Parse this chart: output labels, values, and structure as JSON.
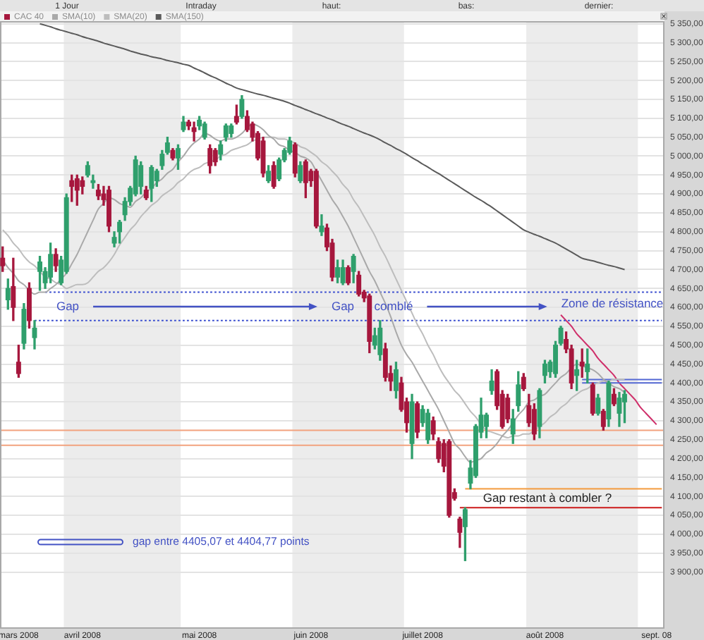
{
  "chart_data": {
    "type": "candlestick",
    "categories": [
      null,
      null,
      null,
      "mars 2008",
      null,
      null,
      null,
      null,
      null,
      null,
      null,
      null,
      null,
      null,
      null,
      "avril 2008",
      null,
      null,
      null,
      null,
      null,
      null,
      null,
      null,
      null,
      null,
      null,
      null,
      null,
      null,
      null,
      null,
      null,
      null,
      null,
      null,
      null,
      "mai 2008",
      null,
      null,
      null,
      null,
      null,
      null,
      null,
      null,
      null,
      null,
      null,
      null,
      null,
      null,
      null,
      null,
      null,
      null,
      null,
      null,
      "juin 2008",
      null,
      null,
      null,
      null,
      null,
      null,
      null,
      null,
      null,
      null,
      null,
      null,
      null,
      null,
      null,
      null,
      null,
      null,
      null,
      null,
      "juillet 2008",
      null,
      null,
      null,
      null,
      null,
      null,
      null,
      null,
      null,
      null,
      null,
      null,
      null,
      null,
      null,
      null,
      null,
      null,
      null,
      null,
      null,
      null,
      "août 2008",
      null,
      null,
      null,
      null,
      null,
      null,
      null,
      null,
      null,
      null,
      null,
      null,
      null,
      null,
      null,
      null,
      null,
      null,
      null,
      null,
      "sept. 08",
      null
    ],
    "ylim": [
      3750,
      5357
    ],
    "yticks": [
      {
        "value": 3900,
        "label": "3 900,00"
      },
      {
        "value": 3950,
        "label": "3 950,00"
      },
      {
        "value": 4000,
        "label": "4 000,00"
      },
      {
        "value": 4050,
        "label": "4 050,00"
      },
      {
        "value": 4100,
        "label": "4 100,00"
      },
      {
        "value": 4150,
        "label": "4 150,00"
      },
      {
        "value": 4200,
        "label": "4 200,00"
      },
      {
        "value": 4250,
        "label": "4 250,00"
      },
      {
        "value": 4300,
        "label": "4 300,00"
      },
      {
        "value": 4350,
        "label": "4 350,00"
      },
      {
        "value": 4400,
        "label": "4 400,00"
      },
      {
        "value": 4450,
        "label": "4 450,00"
      },
      {
        "value": 4500,
        "label": "4 500,00"
      },
      {
        "value": 4550,
        "label": "4 550,00"
      },
      {
        "value": 4600,
        "label": "4 600,00"
      },
      {
        "value": 4650,
        "label": "4 650,00"
      },
      {
        "value": 4700,
        "label": "4 700,00"
      },
      {
        "value": 4750,
        "label": "4 750,00"
      },
      {
        "value": 4800,
        "label": "4 800,00"
      },
      {
        "value": 4850,
        "label": "4 850,00"
      },
      {
        "value": 4900,
        "label": "4 900,00"
      },
      {
        "value": 4950,
        "label": "4 950,00"
      },
      {
        "value": 5000,
        "label": "5 000,00"
      },
      {
        "value": 5050,
        "label": "5 050,00"
      },
      {
        "value": 5100,
        "label": "5 100,00"
      },
      {
        "value": 5150,
        "label": "5 150,00"
      },
      {
        "value": 5200,
        "label": "5 200,00"
      },
      {
        "value": 5250,
        "label": "5 250,00"
      },
      {
        "value": 5300,
        "label": "5 300,00"
      },
      {
        "value": 5350,
        "label": "5 350,00"
      }
    ],
    "grid": "y",
    "legend": "top left",
    "marker": "none",
    "series": [
      {
        "name": "CAC 40",
        "color": "#a6173d",
        "ohlc": [
          [
            4730,
            4760,
            4695,
            4710
          ],
          [
            4620,
            4675,
            4595,
            4650
          ],
          [
            4655,
            4730,
            4565,
            4600
          ],
          [
            4455,
            4500,
            4415,
            4425
          ],
          [
            4505,
            4610,
            4490,
            4595
          ],
          [
            4650,
            4665,
            4545,
            4565
          ],
          [
            4520,
            4565,
            4490,
            4545
          ],
          [
            4695,
            4735,
            4645,
            4720
          ],
          [
            4665,
            4705,
            4650,
            4695
          ],
          [
            4680,
            4770,
            4665,
            4740
          ],
          [
            4740,
            4755,
            4695,
            4710
          ],
          [
            4665,
            4735,
            4660,
            4725
          ],
          [
            4695,
            4900,
            4690,
            4890
          ],
          [
            4935,
            4950,
            4880,
            4920
          ],
          [
            4940,
            4950,
            4870,
            4910
          ],
          [
            4935,
            4945,
            4900,
            4920
          ],
          [
            4950,
            4985,
            4945,
            4975
          ],
          [
            4930,
            4950,
            4915,
            4935
          ],
          [
            4910,
            4925,
            4885,
            4895
          ],
          [
            4900,
            4920,
            4870,
            4885
          ],
          [
            4910,
            4920,
            4800,
            4815
          ],
          [
            4770,
            4800,
            4760,
            4785
          ],
          [
            4800,
            4830,
            4770,
            4825
          ],
          [
            4845,
            4890,
            4830,
            4880
          ],
          [
            4880,
            4920,
            4870,
            4915
          ],
          [
            4900,
            5000,
            4895,
            4990
          ],
          [
            4920,
            4985,
            4900,
            4975
          ],
          [
            4910,
            4920,
            4885,
            4890
          ],
          [
            4915,
            4975,
            4880,
            4970
          ],
          [
            4935,
            4965,
            4920,
            4960
          ],
          [
            4975,
            5015,
            4965,
            5005
          ],
          [
            5010,
            5050,
            5005,
            5035
          ],
          [
            5015,
            5020,
            4990,
            4995
          ],
          [
            4995,
            5030,
            4965,
            5020
          ],
          [
            5070,
            5105,
            5065,
            5090
          ],
          [
            5090,
            5095,
            5070,
            5080
          ],
          [
            5075,
            5090,
            5040,
            5065
          ],
          [
            5080,
            5105,
            5070,
            5095
          ],
          [
            5050,
            5090,
            5045,
            5085
          ],
          [
            5020,
            5030,
            4955,
            4975
          ],
          [
            5015,
            5020,
            4975,
            4985
          ],
          [
            5005,
            5040,
            4990,
            5030
          ],
          [
            5050,
            5085,
            5040,
            5080
          ],
          [
            5060,
            5085,
            5050,
            5080
          ],
          [
            5105,
            5135,
            5085,
            5090
          ],
          [
            5105,
            5160,
            5100,
            5150
          ],
          [
            5105,
            5120,
            5065,
            5070
          ],
          [
            5085,
            5090,
            5040,
            5050
          ],
          [
            5060,
            5065,
            4990,
            4995
          ],
          [
            5040,
            5050,
            4945,
            4955
          ],
          [
            4935,
            4975,
            4930,
            4960
          ],
          [
            4975,
            4985,
            4915,
            4920
          ],
          [
            4940,
            4995,
            4935,
            4990
          ],
          [
            4990,
            5020,
            4985,
            5015
          ],
          [
            5010,
            5050,
            5005,
            5040
          ],
          [
            5030,
            5035,
            4945,
            4955
          ],
          [
            4935,
            4985,
            4930,
            4975
          ],
          [
            4985,
            4990,
            4890,
            4930
          ],
          [
            4960,
            4965,
            4920,
            4935
          ],
          [
            4960,
            4965,
            4810,
            4815
          ],
          [
            4800,
            4845,
            4790,
            4815
          ],
          [
            4810,
            4820,
            4750,
            4760
          ],
          [
            4770,
            4780,
            4670,
            4680
          ],
          [
            4680,
            4725,
            4665,
            4705
          ],
          [
            4665,
            4725,
            4660,
            4705
          ],
          [
            4705,
            4710,
            4660,
            4665
          ],
          [
            4695,
            4740,
            4665,
            4735
          ],
          [
            4685,
            4695,
            4630,
            4635
          ],
          [
            4640,
            4645,
            4615,
            4625
          ],
          [
            4630,
            4635,
            4480,
            4510
          ],
          [
            4500,
            4545,
            4490,
            4525
          ],
          [
            4475,
            4565,
            4460,
            4545
          ],
          [
            4490,
            4505,
            4405,
            4415
          ],
          [
            4425,
            4445,
            4380,
            4405
          ],
          [
            4380,
            4455,
            4360,
            4435
          ],
          [
            4400,
            4415,
            4325,
            4330
          ],
          [
            4350,
            4360,
            4270,
            4295
          ],
          [
            4240,
            4370,
            4200,
            4350
          ],
          [
            4345,
            4350,
            4255,
            4270
          ],
          [
            4295,
            4340,
            4285,
            4330
          ],
          [
            4250,
            4330,
            4240,
            4320
          ],
          [
            4300,
            4310,
            4250,
            4265
          ],
          [
            4245,
            4255,
            4190,
            4200
          ],
          [
            4240,
            4250,
            4165,
            4180
          ],
          [
            4245,
            4250,
            4045,
            4050
          ],
          [
            4110,
            4120,
            4090,
            4095
          ],
          [
            4040,
            4045,
            3965,
            4005
          ],
          [
            4020,
            4070,
            3930,
            4065
          ],
          [
            4135,
            4195,
            4120,
            4175
          ],
          [
            4155,
            4290,
            4150,
            4285
          ],
          [
            4270,
            4360,
            4255,
            4315
          ],
          [
            4285,
            4320,
            4255,
            4315
          ],
          [
            4380,
            4435,
            4370,
            4405
          ],
          [
            4430,
            4435,
            4330,
            4340
          ],
          [
            4370,
            4380,
            4280,
            4285
          ],
          [
            4360,
            4370,
            4295,
            4305
          ],
          [
            4265,
            4330,
            4240,
            4305
          ],
          [
            4340,
            4430,
            4325,
            4395
          ],
          [
            4415,
            4425,
            4380,
            4385
          ],
          [
            4340,
            4370,
            4285,
            4295
          ],
          [
            4330,
            4345,
            4250,
            4265
          ],
          [
            4285,
            4385,
            4255,
            4380
          ],
          [
            4420,
            4460,
            4400,
            4450
          ],
          [
            4430,
            4460,
            4415,
            4455
          ],
          [
            4425,
            4510,
            4415,
            4500
          ],
          [
            4505,
            4550,
            4500,
            4545
          ],
          [
            4515,
            4535,
            4480,
            4490
          ],
          [
            4490,
            4500,
            4385,
            4400
          ],
          [
            4420,
            4460,
            4380,
            4435
          ],
          [
            4455,
            4490,
            4415,
            4445
          ],
          [
            4430,
            4490,
            4400,
            4450
          ],
          [
            4395,
            4400,
            4315,
            4320
          ],
          [
            4320,
            4370,
            4315,
            4360
          ],
          [
            4325,
            4330,
            4275,
            4285
          ],
          [
            4305,
            4405,
            4285,
            4400
          ],
          [
            4370,
            4385,
            4340,
            4345
          ],
          [
            4320,
            4375,
            4285,
            4360
          ],
          [
            4350,
            4380,
            4295,
            4370
          ],
          null,
          null,
          null,
          null,
          null,
          null,
          null
        ],
        "colors": [
          "#a6173d",
          "#2f9f6c",
          "#a6173d",
          "#a6173d",
          "#2f9f6c",
          "#a6173d",
          "#2f9f6c",
          "#2f9f6c",
          "#2f9f6c",
          "#2f9f6c",
          "#a6173d",
          "#2f9f6c",
          "#2f9f6c",
          "#a6173d",
          "#a6173d",
          "#a6173d",
          "#2f9f6c",
          "#2f9f6c",
          "#a6173d",
          "#a6173d",
          "#a6173d",
          "#2f9f6c",
          "#2f9f6c",
          "#2f9f6c",
          "#2f9f6c",
          "#2f9f6c",
          "#2f9f6c",
          "#a6173d",
          "#2f9f6c",
          "#2f9f6c",
          "#2f9f6c",
          "#2f9f6c",
          "#a6173d",
          "#2f9f6c",
          "#2f9f6c",
          "#a6173d",
          "#a6173d",
          "#2f9f6c",
          "#2f9f6c",
          "#a6173d",
          "#a6173d",
          "#2f9f6c",
          "#2f9f6c",
          "#2f9f6c",
          "#a6173d",
          "#2f9f6c",
          "#a6173d",
          "#a6173d",
          "#a6173d",
          "#a6173d",
          "#2f9f6c",
          "#a6173d",
          "#2f9f6c",
          "#2f9f6c",
          "#2f9f6c",
          "#a6173d",
          "#2f9f6c",
          "#a6173d",
          "#a6173d",
          "#a6173d",
          "#2f9f6c",
          "#a6173d",
          "#a6173d",
          "#2f9f6c",
          "#2f9f6c",
          "#a6173d",
          "#2f9f6c",
          "#a6173d",
          "#a6173d",
          "#a6173d",
          "#2f9f6c",
          "#2f9f6c",
          "#a6173d",
          "#a6173d",
          "#2f9f6c",
          "#a6173d",
          "#a6173d",
          "#2f9f6c",
          "#a6173d",
          "#2f9f6c",
          "#2f9f6c",
          "#a6173d",
          "#a6173d",
          "#a6173d",
          "#a6173d",
          "#a6173d",
          "#a6173d",
          "#2f9f6c",
          "#2f9f6c",
          "#2f9f6c",
          "#2f9f6c",
          "#2f9f6c",
          "#2f9f6c",
          "#a6173d",
          "#a6173d",
          "#a6173d",
          "#2f9f6c",
          "#2f9f6c",
          "#a6173d",
          "#a6173d",
          "#a6173d",
          "#2f9f6c",
          "#2f9f6c",
          "#2f9f6c",
          "#2f9f6c",
          "#2f9f6c",
          "#a6173d",
          "#a6173d",
          "#2f9f6c",
          "#a6173d",
          "#2f9f6c",
          "#a6173d",
          "#2f9f6c",
          "#a6173d",
          "#2f9f6c",
          "#a6173d",
          "#2f9f6c",
          "#2f9f6c",
          null,
          null,
          null,
          null,
          null,
          null,
          null
        ]
      },
      {
        "name": "SMA(10)",
        "type": "line",
        "color": "#a9a9a9",
        "values": [
          4725,
          4705,
          4690,
          4670,
          4660,
          4645,
          4635,
          4640,
          4640,
          4650,
          4660,
          4675,
          4690,
          4715,
          4740,
          4770,
          4800,
          4830,
          4860,
          4875,
          4890,
          4885,
          4875,
          4870,
          4865,
          4880,
          4890,
          4905,
          4915,
          4930,
          4940,
          4955,
          4965,
          4985,
          5000,
          5020,
          5035,
          5045,
          5060,
          5055,
          5045,
          5040,
          5045,
          5045,
          5050,
          5060,
          5075,
          5085,
          5080,
          5070,
          5055,
          5045,
          5030,
          5025,
          5015,
          5010,
          5000,
          4995,
          4985,
          4960,
          4935,
          4910,
          4885,
          4865,
          4840,
          4815,
          4785,
          4755,
          4725,
          4695,
          4670,
          4640,
          4610,
          4575,
          4535,
          4500,
          4475,
          4455,
          4430,
          4405,
          4380,
          4355,
          4330,
          4300,
          4270,
          4240,
          4225,
          4205,
          4190,
          4195,
          4200,
          4215,
          4225,
          4240,
          4260,
          4275,
          4295,
          4315,
          4330,
          4350,
          4355,
          4365,
          4370,
          4385,
          4400,
          4415,
          4425,
          4440,
          4450,
          4445,
          4440,
          4435,
          4425,
          4410,
          4400,
          4390,
          4385,
          4375,
          null,
          null,
          null,
          null,
          null,
          null,
          null
        ]
      },
      {
        "name": "SMA(20)",
        "type": "line",
        "color": "#bdbdbd",
        "values": [
          4805,
          4790,
          4770,
          4755,
          4735,
          4720,
          4710,
          4695,
          4680,
          4675,
          4665,
          4660,
          4650,
          4655,
          4660,
          4660,
          4665,
          4680,
          4695,
          4705,
          4720,
          4740,
          4765,
          4785,
          4805,
          4820,
          4840,
          4855,
          4870,
          4880,
          4895,
          4905,
          4915,
          4930,
          4940,
          4955,
          4965,
          4970,
          4980,
          4985,
          4990,
          5000,
          5005,
          5015,
          5020,
          5025,
          5030,
          5040,
          5045,
          5050,
          5050,
          5050,
          5045,
          5045,
          5040,
          5035,
          5025,
          5020,
          5010,
          5000,
          4985,
          4975,
          4960,
          4945,
          4925,
          4910,
          4885,
          4865,
          4840,
          4815,
          4790,
          4760,
          4735,
          4705,
          4675,
          4645,
          4615,
          4585,
          4555,
          4530,
          4500,
          4475,
          4445,
          4420,
          4400,
          4380,
          4365,
          4345,
          4325,
          4310,
          4290,
          4275,
          4270,
          4265,
          4260,
          4255,
          4260,
          4260,
          4265,
          4265,
          4275,
          4285,
          4295,
          4310,
          4320,
          4335,
          4345,
          4360,
          4370,
          4380,
          4385,
          4395,
          4400,
          4405,
          4405,
          4410,
          4410,
          4410,
          null,
          null,
          null,
          null,
          null,
          null,
          null
        ]
      },
      {
        "name": "SMA(150)",
        "type": "line",
        "color": "#5a5a5a",
        "values": [
          null,
          null,
          null,
          null,
          null,
          null,
          null,
          5350,
          5346,
          5342,
          5337,
          5333,
          5329,
          5325,
          5321,
          5316,
          5312,
          5308,
          5304,
          5299,
          5295,
          5291,
          5287,
          5283,
          5278,
          5274,
          5270,
          5267,
          5263,
          5260,
          5257,
          5253,
          5250,
          5247,
          5243,
          5240,
          5233,
          5227,
          5220,
          5213,
          5207,
          5200,
          5193,
          5187,
          5180,
          5176,
          5172,
          5168,
          5164,
          5161,
          5157,
          5153,
          5149,
          5145,
          5140,
          5134,
          5129,
          5123,
          5118,
          5112,
          5107,
          5101,
          5096,
          5090,
          5084,
          5079,
          5073,
          5067,
          5061,
          5056,
          5050,
          5043,
          5035,
          5028,
          5020,
          5013,
          5005,
          4996,
          4988,
          4979,
          4971,
          4962,
          4954,
          4945,
          4936,
          4927,
          4918,
          4909,
          4900,
          4891,
          4883,
          4874,
          4865,
          4855,
          4845,
          4835,
          4825,
          4815,
          4805,
          4799,
          4793,
          4788,
          4782,
          4776,
          4770,
          4762,
          4754,
          4746,
          4738,
          4730,
          4726,
          4723,
          4719,
          4715,
          4711,
          4708,
          4704,
          4700,
          null,
          null,
          null,
          null,
          null,
          null,
          null
        ]
      },
      {
        "type": "line",
        "color": "#3b4fd0",
        "line_style": "dotted",
        "values": [
          null,
          null,
          null,
          null,
          null,
          null,
          null,
          null,
          4640,
          4640,
          4640,
          4640,
          4640,
          4640,
          4640,
          4640,
          4640,
          4640,
          4640,
          4640,
          4640,
          4640,
          4640,
          4640,
          4640,
          4640,
          4640,
          4640,
          4640,
          4640,
          4640,
          4640,
          4640,
          4640,
          4640,
          4640,
          4640,
          4640,
          4640,
          4640,
          4640,
          4640,
          4640,
          4640,
          4640,
          4640,
          4640,
          4640,
          4640,
          4640,
          4640,
          4640,
          4640,
          4640,
          4640,
          4640,
          4640,
          4640,
          4640,
          4640,
          4640,
          4640,
          4640,
          4640,
          4640,
          4640,
          4640,
          4640,
          4640,
          4640,
          4640,
          4640,
          4640,
          4640,
          4640,
          4640,
          4640,
          4640,
          4640,
          4640,
          4640,
          4640,
          4640,
          4640,
          4640,
          4640,
          4640,
          4640,
          4640,
          4640,
          4640,
          4640,
          4640,
          4640,
          4640,
          4640,
          4640,
          4640,
          4640,
          4640,
          4640,
          4640,
          4640,
          4640,
          4640,
          4640,
          4640,
          4640,
          4640,
          4640,
          4640,
          4640,
          4640,
          4640,
          4640,
          4640,
          4640,
          4640,
          4640,
          4640,
          4640,
          4640,
          4640,
          4640,
          4640
        ]
      },
      {
        "type": "line",
        "color": "#3b4fd0",
        "line_style": "dotted",
        "values": [
          null,
          null,
          null,
          null,
          null,
          null,
          4565,
          4565,
          4565,
          4565,
          4565,
          4565,
          4565,
          4565,
          4565,
          4565,
          4565,
          4565,
          4565,
          4565,
          4565,
          4565,
          4565,
          4565,
          4565,
          4565,
          4565,
          4565,
          4565,
          4565,
          4565,
          4565,
          4565,
          4565,
          4565,
          4565,
          4565,
          4565,
          4565,
          4565,
          4565,
          4565,
          4565,
          4565,
          4565,
          4565,
          4565,
          4565,
          4565,
          4565,
          4565,
          4565,
          4565,
          4565,
          4565,
          4565,
          4565,
          4565,
          4565,
          4565,
          4565,
          4565,
          4565,
          4565,
          4565,
          4565,
          4565,
          4565,
          4565,
          4565,
          4565,
          4565,
          4565,
          4565,
          4565,
          4565,
          4565,
          4565,
          4565,
          4565,
          4565,
          4565,
          4565,
          4565,
          4565,
          4565,
          4565,
          4565,
          4565,
          4565,
          4565,
          4565,
          4565,
          4565,
          4565,
          4565,
          4565,
          4565,
          4565,
          4565,
          4565,
          4565,
          4565,
          4565,
          4565,
          4565,
          4565,
          4565,
          4565,
          4565,
          4565,
          4565,
          4565,
          4565,
          4565,
          4565,
          4565,
          4565,
          4565,
          4565,
          4565,
          4565,
          4565,
          4565,
          4565
        ]
      },
      {
        "type": "line",
        "color": "#5468d4",
        "values": [
          null,
          null,
          null,
          null,
          null,
          null,
          null,
          null,
          null,
          null,
          null,
          null,
          null,
          null,
          null,
          null,
          null,
          null,
          null,
          null,
          null,
          null,
          null,
          null,
          null,
          null,
          null,
          null,
          null,
          null,
          null,
          null,
          null,
          null,
          null,
          null,
          null,
          null,
          null,
          null,
          null,
          null,
          null,
          null,
          null,
          null,
          null,
          null,
          null,
          null,
          null,
          null,
          null,
          null,
          null,
          null,
          null,
          null,
          null,
          null,
          null,
          null,
          null,
          null,
          null,
          null,
          null,
          null,
          null,
          null,
          null,
          null,
          null,
          null,
          null,
          null,
          null,
          null,
          null,
          null,
          null,
          null,
          null,
          null,
          null,
          null,
          null,
          null,
          null,
          null,
          null,
          null,
          null,
          null,
          null,
          null,
          null,
          null,
          null,
          null,
          null,
          null,
          null,
          null,
          null,
          null,
          null,
          null,
          null,
          4409,
          4409,
          4409,
          4409,
          4409,
          4409,
          4409,
          4409,
          4409,
          4409,
          4409,
          4409,
          4409,
          4409,
          4409,
          4409
        ]
      },
      {
        "type": "line",
        "color": "#5468d4",
        "values": [
          null,
          null,
          null,
          null,
          null,
          null,
          null,
          null,
          null,
          null,
          null,
          null,
          null,
          null,
          null,
          null,
          null,
          null,
          null,
          null,
          null,
          null,
          null,
          null,
          null,
          null,
          null,
          null,
          null,
          null,
          null,
          null,
          null,
          null,
          null,
          null,
          null,
          null,
          null,
          null,
          null,
          null,
          null,
          null,
          null,
          null,
          null,
          null,
          null,
          null,
          null,
          null,
          null,
          null,
          null,
          null,
          null,
          null,
          null,
          null,
          null,
          null,
          null,
          null,
          null,
          null,
          null,
          null,
          null,
          null,
          null,
          null,
          null,
          null,
          null,
          null,
          null,
          null,
          null,
          null,
          null,
          null,
          null,
          null,
          null,
          null,
          null,
          null,
          null,
          null,
          null,
          null,
          null,
          null,
          null,
          null,
          null,
          null,
          null,
          null,
          null,
          null,
          null,
          null,
          null,
          null,
          null,
          null,
          null,
          4400,
          4400,
          4400,
          4400,
          4400,
          4400,
          4400,
          4400,
          4400,
          4400,
          4400,
          4400,
          4400,
          4400,
          4400,
          4400
        ]
      },
      {
        "type": "line",
        "color": "#f39a3c",
        "values": [
          null,
          null,
          null,
          null,
          null,
          null,
          null,
          null,
          null,
          null,
          null,
          null,
          null,
          null,
          null,
          null,
          null,
          null,
          null,
          null,
          null,
          null,
          null,
          null,
          null,
          null,
          null,
          null,
          null,
          null,
          null,
          null,
          null,
          null,
          null,
          null,
          null,
          null,
          null,
          null,
          null,
          null,
          null,
          null,
          null,
          null,
          null,
          null,
          null,
          null,
          null,
          null,
          null,
          null,
          null,
          null,
          null,
          null,
          null,
          null,
          null,
          null,
          null,
          null,
          null,
          null,
          null,
          null,
          null,
          null,
          null,
          null,
          null,
          null,
          null,
          null,
          null,
          null,
          null,
          null,
          null,
          null,
          null,
          null,
          null,
          null,
          null,
          4120,
          4120,
          4120,
          4120,
          4120,
          4120,
          4120,
          4120,
          4120,
          4120,
          4120,
          4120,
          4120,
          4120,
          4120,
          4120,
          4120,
          4120,
          4120,
          4120,
          4120,
          4120,
          4120,
          4120,
          4120,
          4120,
          4120,
          4120,
          4120,
          4120,
          4120,
          4120,
          4120,
          4120,
          4120,
          4120,
          4120,
          4120
        ]
      },
      {
        "type": "line",
        "color": "#cc1a1a",
        "values": [
          null,
          null,
          null,
          null,
          null,
          null,
          null,
          null,
          null,
          null,
          null,
          null,
          null,
          null,
          null,
          null,
          null,
          null,
          null,
          null,
          null,
          null,
          null,
          null,
          null,
          null,
          null,
          null,
          null,
          null,
          null,
          null,
          null,
          null,
          null,
          null,
          null,
          null,
          null,
          null,
          null,
          null,
          null,
          null,
          null,
          null,
          null,
          null,
          null,
          null,
          null,
          null,
          null,
          null,
          null,
          null,
          null,
          null,
          null,
          null,
          null,
          null,
          null,
          null,
          null,
          null,
          null,
          null,
          null,
          null,
          null,
          null,
          null,
          null,
          null,
          null,
          null,
          null,
          null,
          null,
          null,
          null,
          null,
          null,
          null,
          null,
          4070,
          4070,
          4070,
          4070,
          4070,
          4070,
          4070,
          4070,
          4070,
          4070,
          4070,
          4070,
          4070,
          4070,
          4070,
          4070,
          4070,
          4070,
          4070,
          4070,
          4070,
          4070,
          4070,
          4070,
          4070,
          4070,
          4070,
          4070,
          4070,
          4070,
          4070,
          4070,
          4070,
          4070,
          4070,
          4070,
          4070,
          4070,
          4070
        ]
      },
      {
        "type": "line",
        "color": "#cf2f6a",
        "values": [
          null,
          null,
          null,
          null,
          null,
          null,
          null,
          null,
          null,
          null,
          null,
          null,
          null,
          null,
          null,
          null,
          null,
          null,
          null,
          null,
          null,
          null,
          null,
          null,
          null,
          null,
          null,
          null,
          null,
          null,
          null,
          null,
          null,
          null,
          null,
          null,
          null,
          null,
          null,
          null,
          null,
          null,
          null,
          null,
          null,
          null,
          null,
          null,
          null,
          null,
          null,
          null,
          null,
          null,
          null,
          null,
          null,
          null,
          null,
          null,
          null,
          null,
          null,
          null,
          null,
          null,
          null,
          null,
          null,
          null,
          null,
          null,
          null,
          null,
          null,
          null,
          null,
          null,
          null,
          null,
          null,
          null,
          null,
          null,
          null,
          null,
          null,
          null,
          null,
          null,
          null,
          null,
          null,
          null,
          null,
          null,
          null,
          null,
          null,
          null,
          null,
          null,
          null,
          null,
          null,
          4580,
          4565,
          4550,
          4530,
          4515,
          4500,
          4485,
          4465,
          4450,
          4435,
          4420,
          4400,
          4385,
          4370,
          4355,
          4335,
          4320,
          4305,
          4290,
          null
        ]
      }
    ],
    "ref_lines": [
      {
        "axis": "y",
        "value": 4275,
        "color": "#f2a27e"
      },
      {
        "axis": "y",
        "value": 4235,
        "color": "#f2a27e"
      }
    ],
    "annotations": [
      "1 Jour",
      "Intraday",
      "haut:",
      "bas:",
      "dernier:",
      "Gap",
      "Gap",
      "comblé",
      "Zone de résistance",
      "Gap restant à combler ?",
      "gap entre 4405,07 et 4404,77 points"
    ]
  }
}
